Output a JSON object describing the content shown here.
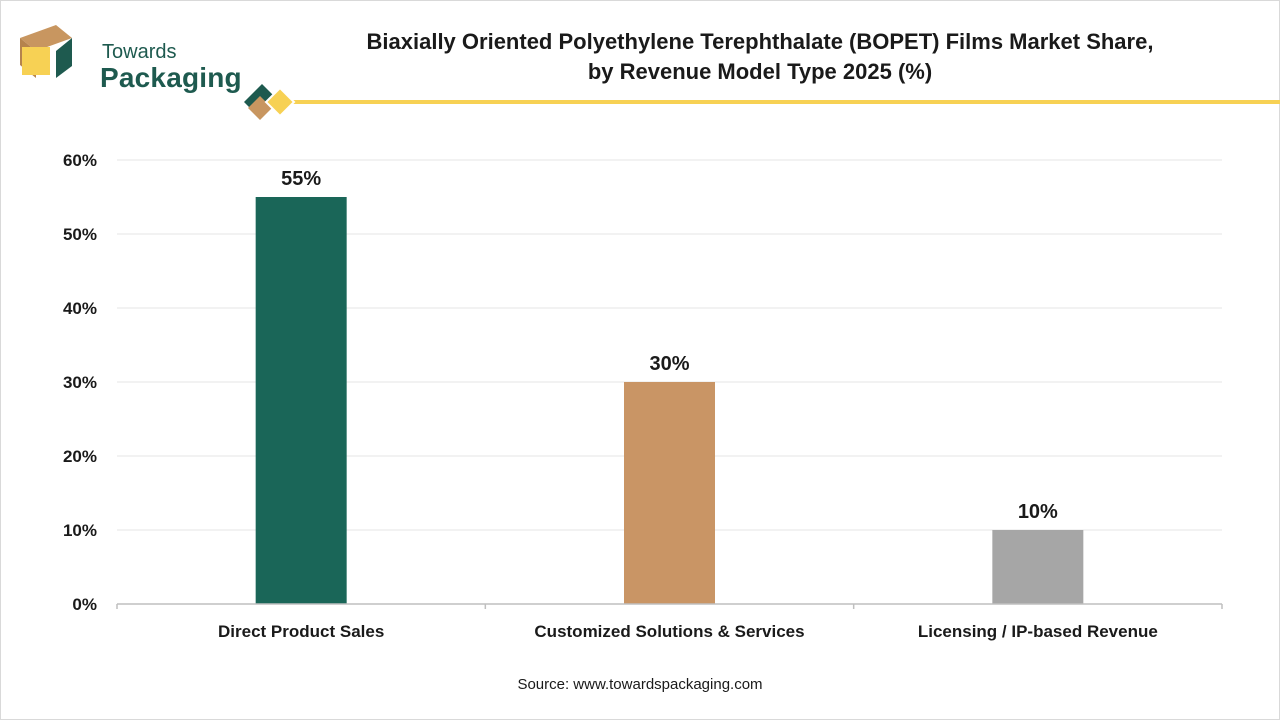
{
  "brand": {
    "line1": "Towards",
    "line2": "Packaging",
    "colors": {
      "green": "#1e5a4f",
      "tan": "#c89660",
      "yellow": "#f7d154"
    }
  },
  "title_line1": "Biaxially Oriented Polyethylene Terephthalate (BOPET) Films Market Share,",
  "title_line2": "by Revenue Model Type 2025 (%)",
  "source": "Source: www.towardspackaging.com",
  "chart_data": {
    "type": "bar",
    "categories": [
      "Direct Product Sales",
      "Customized Solutions & Services",
      "Licensing / IP-based Revenue"
    ],
    "values": [
      55,
      30,
      10
    ],
    "data_labels": [
      "55%",
      "30%",
      "10%"
    ],
    "bar_colors": [
      "#1a6658",
      "#c99565",
      "#a6a6a6"
    ],
    "ylim": [
      0,
      60
    ],
    "yticks": [
      0,
      10,
      20,
      30,
      40,
      50,
      60
    ],
    "ytick_labels": [
      "0%",
      "10%",
      "20%",
      "30%",
      "40%",
      "50%",
      "60%"
    ],
    "grid": true,
    "legend": "none"
  }
}
